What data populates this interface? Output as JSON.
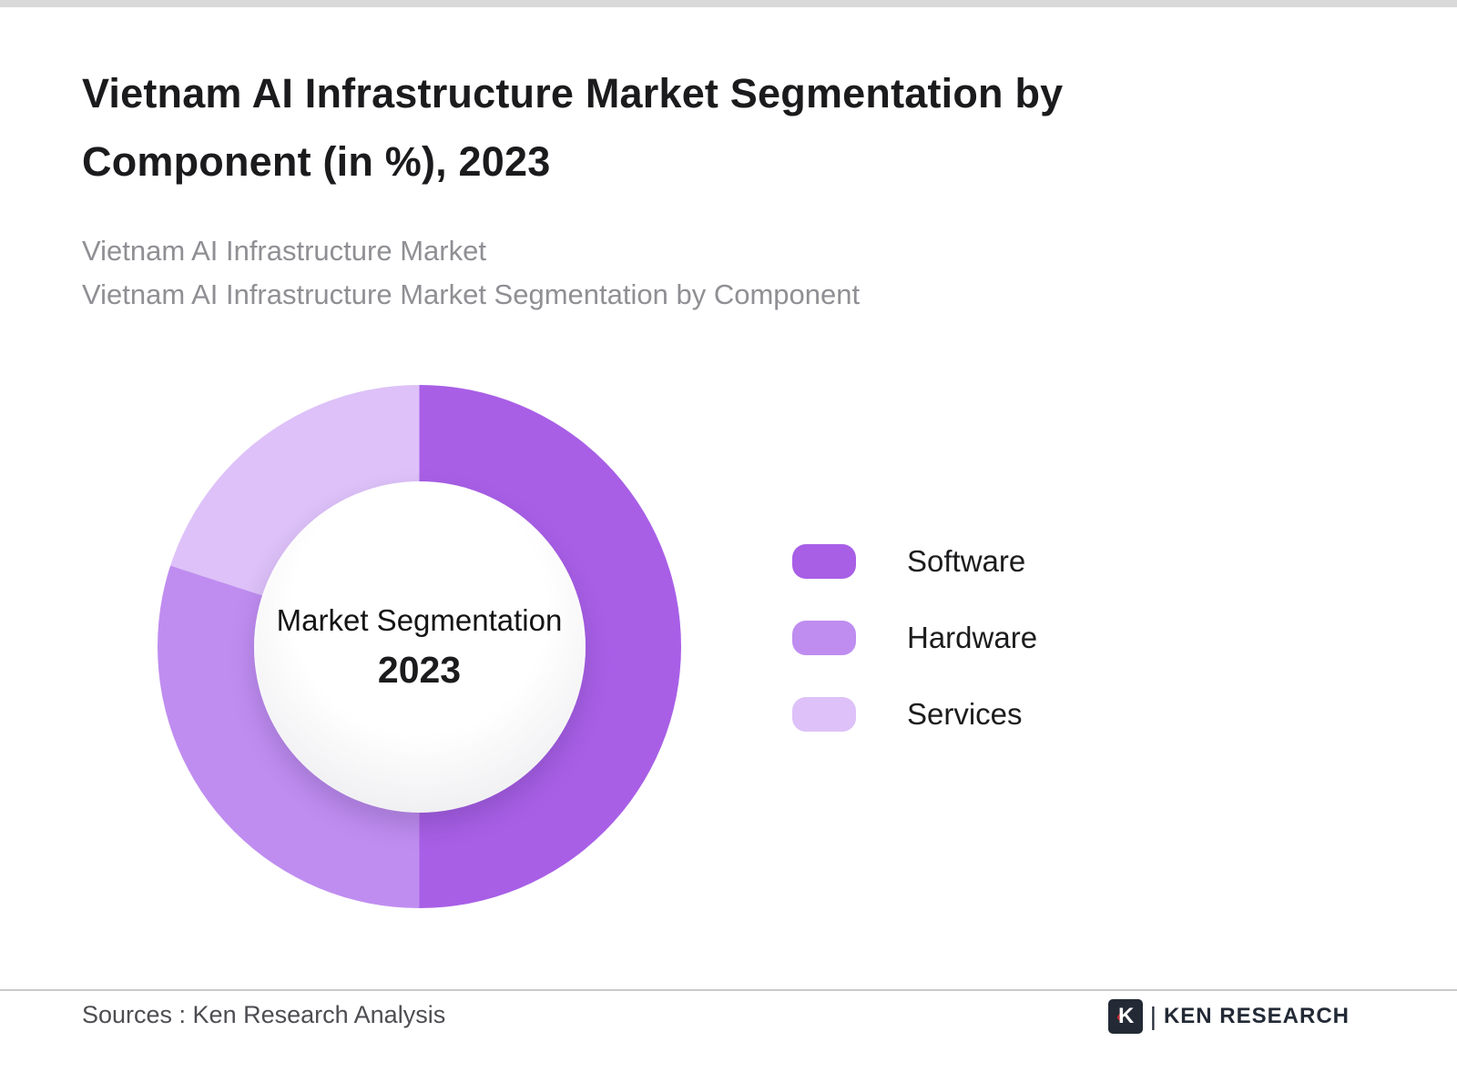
{
  "page": {
    "title_line1": "Vietnam AI Infrastructure Market Segmentation by",
    "title_line2": "Component (in %), 2023",
    "subtitle_line1": "Vietnam AI Infrastructure Market",
    "subtitle_line2": "Vietnam AI Infrastructure Market Segmentation by Component"
  },
  "chart_data": {
    "type": "pie",
    "variant": "donut",
    "title": "Vietnam AI Infrastructure Market Segmentation by Component (in %), 2023",
    "categories": [
      "Software",
      "Hardware",
      "Services"
    ],
    "values": [
      50,
      30,
      20
    ],
    "unit": "%",
    "colors": [
      "#a85fe6",
      "#bf8df0",
      "#ddc1f8"
    ],
    "center_label": "Market Segmentation",
    "center_year": "2023",
    "legend_position": "right",
    "start_angle_deg": 0,
    "direction": "clockwise"
  },
  "legend": {
    "items": [
      {
        "label": "Software",
        "color": "#a85fe6"
      },
      {
        "label": "Hardware",
        "color": "#bf8df0"
      },
      {
        "label": "Services",
        "color": "#ddc1f8"
      }
    ]
  },
  "footer": {
    "sources": "Sources : Ken Research Analysis",
    "logo_mark": "K",
    "logo_accent": "‹",
    "logo_text": "KEN RESEARCH"
  }
}
